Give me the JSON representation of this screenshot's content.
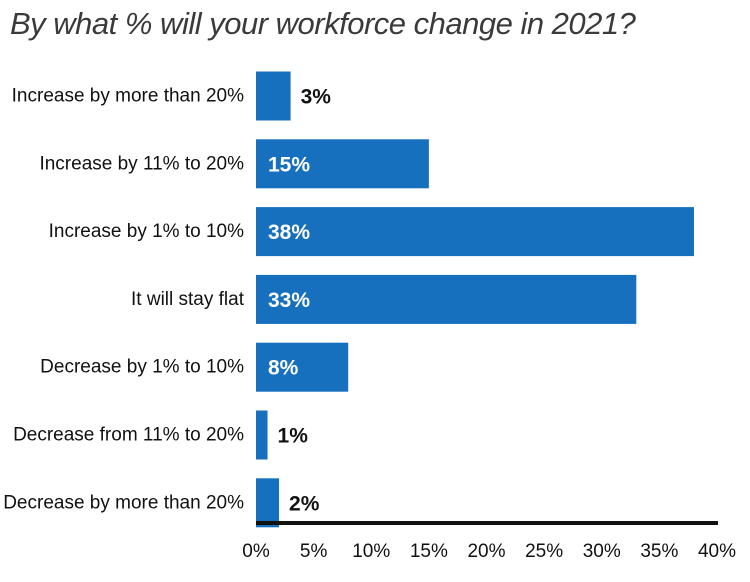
{
  "chart_data": {
    "type": "bar",
    "orientation": "horizontal",
    "title": "By what % will your workforce change in 2021?",
    "categories": [
      "Increase by more than 20%",
      "Increase by 11% to 20%",
      "Increase by 1% to 10%",
      "It will stay flat",
      "Decrease by 1% to 10%",
      "Decrease from 11% to 20%",
      "Decrease by more than 20%"
    ],
    "values": [
      3,
      15,
      38,
      33,
      8,
      1,
      2
    ],
    "value_labels": [
      "3%",
      "15%",
      "38%",
      "33%",
      "8%",
      "1%",
      "2%"
    ],
    "xlim": [
      0,
      40
    ],
    "x_ticks": [
      0,
      5,
      10,
      15,
      20,
      25,
      30,
      35,
      40
    ],
    "x_tick_labels": [
      "0%",
      "5%",
      "10%",
      "15%",
      "20%",
      "25%",
      "30%",
      "35%",
      "40%"
    ],
    "xlabel": "",
    "ylabel": "",
    "grid": false,
    "legend": "none",
    "bar_color": "#1670bd",
    "axis_color": "#111111"
  }
}
